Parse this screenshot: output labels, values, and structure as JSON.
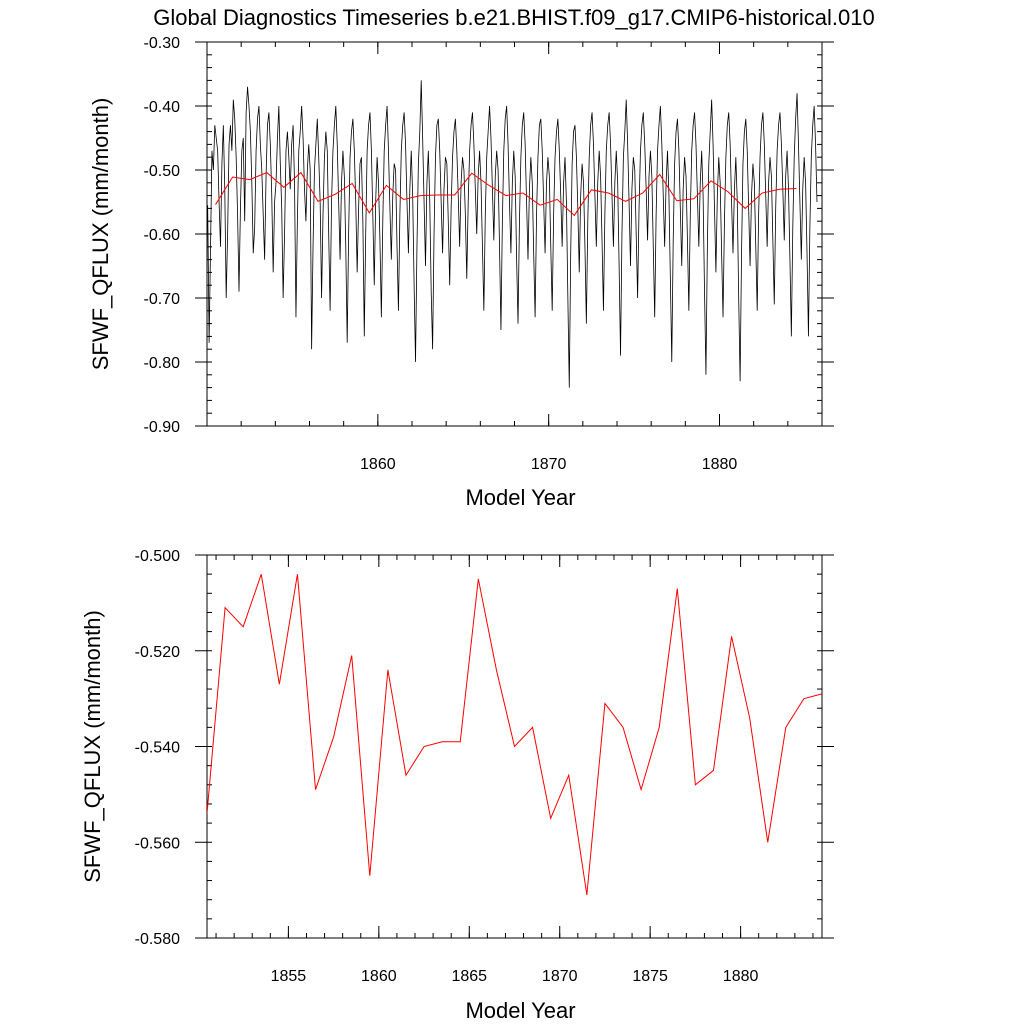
{
  "figure": {
    "title": "Global Diagnostics Timeseries b.e21.BHIST.f09_g17.CMIP6-historical.010"
  },
  "colors": {
    "monthly": "#000000",
    "annual": "#ff0000"
  },
  "chart_data": [
    {
      "type": "line",
      "ylabel": "SFWF_QFLUX (mm/month)",
      "xlabel": "Model Year",
      "xlim": [
        1850.0,
        1886.0
      ],
      "ylim": [
        -0.9,
        -0.3
      ],
      "xticks": [
        1860,
        1870,
        1880
      ],
      "xtick_labels": [
        "1860",
        "1870",
        "1880"
      ],
      "xminor_step": 2,
      "yticks": [
        -0.9,
        -0.8,
        -0.7,
        -0.6,
        -0.5,
        -0.4,
        -0.3
      ],
      "ytick_labels": [
        "-0.90",
        "-0.80",
        "-0.70",
        "-0.60",
        "-0.50",
        "-0.40",
        "-0.30"
      ],
      "yminor_step": 0.02,
      "series": [
        {
          "key": "monthly",
          "color": "#000000",
          "x_start": 1850.04,
          "x_step": 0.0833333,
          "values": [
            -0.555,
            -0.77,
            -0.62,
            -0.47,
            -0.5,
            -0.43,
            -0.45,
            -0.47,
            -0.55,
            -0.62,
            -0.49,
            -0.43,
            -0.53,
            -0.7,
            -0.6,
            -0.46,
            -0.43,
            -0.47,
            -0.39,
            -0.42,
            -0.48,
            -0.57,
            -0.69,
            -0.56,
            -0.47,
            -0.45,
            -0.58,
            -0.41,
            -0.37,
            -0.4,
            -0.44,
            -0.52,
            -0.63,
            -0.59,
            -0.47,
            -0.42,
            -0.4,
            -0.46,
            -0.5,
            -0.57,
            -0.64,
            -0.51,
            -0.43,
            -0.41,
            -0.46,
            -0.54,
            -0.66,
            -0.55,
            -0.52,
            -0.45,
            -0.4,
            -0.49,
            -0.56,
            -0.7,
            -0.6,
            -0.47,
            -0.44,
            -0.48,
            -0.53,
            -0.46,
            -0.43,
            -0.52,
            -0.73,
            -0.58,
            -0.47,
            -0.44,
            -0.4,
            -0.45,
            -0.53,
            -0.58,
            -0.5,
            -0.46,
            -0.5,
            -0.78,
            -0.62,
            -0.5,
            -0.46,
            -0.42,
            -0.48,
            -0.55,
            -0.7,
            -0.57,
            -0.48,
            -0.44,
            -0.47,
            -0.6,
            -0.72,
            -0.55,
            -0.47,
            -0.43,
            -0.4,
            -0.46,
            -0.55,
            -0.64,
            -0.52,
            -0.47,
            -0.51,
            -0.62,
            -0.77,
            -0.6,
            -0.48,
            -0.44,
            -0.42,
            -0.47,
            -0.55,
            -0.66,
            -0.56,
            -0.49,
            -0.48,
            -0.58,
            -0.76,
            -0.6,
            -0.47,
            -0.43,
            -0.41,
            -0.47,
            -0.57,
            -0.68,
            -0.55,
            -0.48,
            -0.52,
            -0.61,
            -0.73,
            -0.58,
            -0.47,
            -0.43,
            -0.4,
            -0.47,
            -0.56,
            -0.64,
            -0.54,
            -0.49,
            -0.5,
            -0.62,
            -0.72,
            -0.57,
            -0.47,
            -0.43,
            -0.41,
            -0.46,
            -0.55,
            -0.63,
            -0.53,
            -0.47,
            -0.54,
            -0.68,
            -0.8,
            -0.62,
            -0.49,
            -0.44,
            -0.36,
            -0.45,
            -0.55,
            -0.65,
            -0.52,
            -0.47,
            -0.55,
            -0.69,
            -0.78,
            -0.6,
            -0.48,
            -0.43,
            -0.42,
            -0.47,
            -0.55,
            -0.63,
            -0.53,
            -0.48,
            -0.49,
            -0.58,
            -0.68,
            -0.56,
            -0.48,
            -0.44,
            -0.42,
            -0.47,
            -0.54,
            -0.62,
            -0.52,
            -0.48,
            -0.5,
            -0.57,
            -0.67,
            -0.55,
            -0.47,
            -0.43,
            -0.41,
            -0.46,
            -0.53,
            -0.6,
            -0.51,
            -0.47,
            -0.52,
            -0.62,
            -0.72,
            -0.57,
            -0.48,
            -0.44,
            -0.4,
            -0.45,
            -0.53,
            -0.61,
            -0.51,
            -0.47,
            -0.5,
            -0.62,
            -0.75,
            -0.58,
            -0.47,
            -0.42,
            -0.4,
            -0.46,
            -0.55,
            -0.63,
            -0.52,
            -0.47,
            -0.51,
            -0.64,
            -0.74,
            -0.58,
            -0.48,
            -0.43,
            -0.41,
            -0.46,
            -0.55,
            -0.64,
            -0.53,
            -0.48,
            -0.52,
            -0.63,
            -0.73,
            -0.57,
            -0.48,
            -0.43,
            -0.42,
            -0.47,
            -0.55,
            -0.63,
            -0.52,
            -0.48,
            -0.51,
            -0.62,
            -0.72,
            -0.57,
            -0.48,
            -0.44,
            -0.42,
            -0.47,
            -0.54,
            -0.62,
            -0.52,
            -0.48,
            -0.55,
            -0.7,
            -0.84,
            -0.63,
            -0.49,
            -0.44,
            -0.43,
            -0.48,
            -0.56,
            -0.66,
            -0.54,
            -0.49,
            -0.52,
            -0.62,
            -0.74,
            -0.58,
            -0.48,
            -0.43,
            -0.41,
            -0.46,
            -0.54,
            -0.62,
            -0.52,
            -0.47,
            -0.51,
            -0.61,
            -0.72,
            -0.57,
            -0.47,
            -0.43,
            -0.41,
            -0.46,
            -0.54,
            -0.62,
            -0.52,
            -0.47,
            -0.52,
            -0.65,
            -0.79,
            -0.6,
            -0.48,
            -0.44,
            -0.39,
            -0.46,
            -0.55,
            -0.65,
            -0.53,
            -0.48,
            -0.5,
            -0.6,
            -0.7,
            -0.56,
            -0.47,
            -0.43,
            -0.41,
            -0.46,
            -0.53,
            -0.61,
            -0.51,
            -0.47,
            -0.51,
            -0.62,
            -0.73,
            -0.57,
            -0.47,
            -0.43,
            -0.4,
            -0.46,
            -0.54,
            -0.62,
            -0.52,
            -0.47,
            -0.54,
            -0.67,
            -0.8,
            -0.61,
            -0.49,
            -0.44,
            -0.42,
            -0.47,
            -0.56,
            -0.65,
            -0.53,
            -0.48,
            -0.51,
            -0.61,
            -0.72,
            -0.57,
            -0.47,
            -0.43,
            -0.41,
            -0.46,
            -0.54,
            -0.62,
            -0.52,
            -0.47,
            -0.54,
            -0.69,
            -0.82,
            -0.62,
            -0.49,
            -0.44,
            -0.39,
            -0.46,
            -0.56,
            -0.66,
            -0.54,
            -0.48,
            -0.52,
            -0.63,
            -0.73,
            -0.58,
            -0.48,
            -0.43,
            -0.41,
            -0.46,
            -0.55,
            -0.63,
            -0.53,
            -0.48,
            -0.55,
            -0.7,
            -0.83,
            -0.63,
            -0.49,
            -0.44,
            -0.42,
            -0.47,
            -0.56,
            -0.65,
            -0.54,
            -0.49,
            -0.52,
            -0.62,
            -0.72,
            -0.57,
            -0.48,
            -0.43,
            -0.41,
            -0.46,
            -0.54,
            -0.62,
            -0.52,
            -0.48,
            -0.51,
            -0.61,
            -0.71,
            -0.56,
            -0.47,
            -0.43,
            -0.41,
            -0.46,
            -0.53,
            -0.61,
            -0.51,
            -0.47,
            -0.53,
            -0.64,
            -0.76,
            -0.59,
            -0.48,
            -0.42,
            -0.38,
            -0.46,
            -0.55,
            -0.64,
            -0.53,
            -0.48,
            -0.52,
            -0.63,
            -0.76,
            -0.59,
            -0.48,
            -0.43,
            -0.4,
            -0.46,
            -0.55
          ]
        },
        {
          "key": "annual",
          "color": "#ff0000",
          "x": [
            1850.5,
            1851.5,
            1852.5,
            1853.5,
            1854.5,
            1855.5,
            1856.5,
            1857.5,
            1858.5,
            1859.5,
            1860.5,
            1861.5,
            1862.5,
            1863.5,
            1864.5,
            1865.5,
            1866.5,
            1867.5,
            1868.5,
            1869.5,
            1870.5,
            1871.5,
            1872.5,
            1873.5,
            1874.5,
            1875.5,
            1876.5,
            1877.5,
            1878.5,
            1879.5,
            1880.5,
            1881.5,
            1882.5,
            1883.5,
            1884.5
          ],
          "values": [
            -0.554,
            -0.511,
            -0.515,
            -0.504,
            -0.527,
            -0.504,
            -0.549,
            -0.538,
            -0.521,
            -0.567,
            -0.524,
            -0.546,
            -0.54,
            -0.539,
            -0.539,
            -0.505,
            -0.524,
            -0.54,
            -0.536,
            -0.555,
            -0.546,
            -0.571,
            -0.531,
            -0.536,
            -0.549,
            -0.536,
            -0.507,
            -0.548,
            -0.545,
            -0.517,
            -0.534,
            -0.56,
            -0.536,
            -0.53,
            -0.529
          ]
        }
      ]
    },
    {
      "type": "line",
      "ylabel": "SFWF_QFLUX (mm/month)",
      "xlabel": "Model Year",
      "xlim": [
        1850.5,
        1884.5
      ],
      "ylim": [
        -0.58,
        -0.5
      ],
      "xticks": [
        1855,
        1860,
        1865,
        1870,
        1875,
        1880
      ],
      "xtick_labels": [
        "1855",
        "1860",
        "1865",
        "1870",
        "1875",
        "1880"
      ],
      "xminor_step": 1,
      "yticks": [
        -0.58,
        -0.56,
        -0.54,
        -0.52,
        -0.5
      ],
      "ytick_labels": [
        "-0.580",
        "-0.560",
        "-0.540",
        "-0.520",
        "-0.500"
      ],
      "yminor_step": 0.004,
      "series": [
        {
          "key": "annual",
          "color": "#ff0000",
          "x": [
            1850.5,
            1851.5,
            1852.5,
            1853.5,
            1854.5,
            1855.5,
            1856.5,
            1857.5,
            1858.5,
            1859.5,
            1860.5,
            1861.5,
            1862.5,
            1863.5,
            1864.5,
            1865.5,
            1866.5,
            1867.5,
            1868.5,
            1869.5,
            1870.5,
            1871.5,
            1872.5,
            1873.5,
            1874.5,
            1875.5,
            1876.5,
            1877.5,
            1878.5,
            1879.5,
            1880.5,
            1881.5,
            1882.5,
            1883.5,
            1884.5
          ],
          "values": [
            -0.554,
            -0.511,
            -0.515,
            -0.504,
            -0.527,
            -0.504,
            -0.549,
            -0.538,
            -0.521,
            -0.567,
            -0.524,
            -0.546,
            -0.54,
            -0.539,
            -0.539,
            -0.505,
            -0.524,
            -0.54,
            -0.536,
            -0.555,
            -0.546,
            -0.571,
            -0.531,
            -0.536,
            -0.549,
            -0.536,
            -0.507,
            -0.548,
            -0.545,
            -0.517,
            -0.534,
            -0.56,
            -0.536,
            -0.53,
            -0.529
          ]
        }
      ]
    }
  ]
}
